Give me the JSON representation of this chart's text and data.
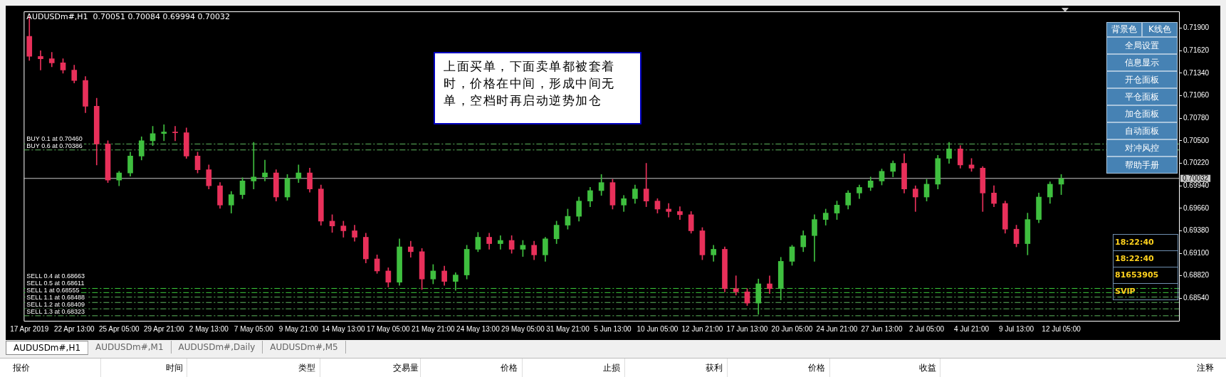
{
  "chart_data": {
    "type": "candlestick",
    "title": "AUDUSDm#,H1  0.70051 0.70084 0.69994 0.70032",
    "categories": [
      "17 Apr 2019",
      null,
      null,
      null,
      "22 Apr 13:00",
      null,
      null,
      null,
      "25 Apr 05:00",
      null,
      null,
      null,
      "29 Apr 21:00",
      null,
      null,
      null,
      "2 May 13:00",
      null,
      null,
      null,
      "7 May 05:00",
      null,
      null,
      null,
      "9 May 21:00",
      null,
      null,
      null,
      "14 May 13:00",
      null,
      null,
      null,
      "17 May 05:00",
      null,
      null,
      null,
      "21 May 21:00",
      null,
      null,
      null,
      "24 May 13:00",
      null,
      null,
      null,
      "29 May 05:00",
      null,
      null,
      null,
      "31 May 21:00",
      null,
      null,
      null,
      "5 Jun 13:00",
      null,
      null,
      null,
      "10 Jun 05:00",
      null,
      null,
      null,
      "12 Jun 21:00",
      null,
      null,
      null,
      "17 Jun 13:00",
      null,
      null,
      null,
      "20 Jun 05:00",
      null,
      null,
      null,
      "24 Jun 21:00",
      null,
      null,
      null,
      "27 Jun 13:00",
      null,
      null,
      null,
      "2 Jul 05:00",
      null,
      null,
      null,
      "4 Jul 21:00",
      null,
      null,
      null,
      "9 Jul 13:00",
      null,
      null,
      null,
      "12 Jul 05:00",
      null,
      null,
      null,
      null,
      null,
      null,
      null,
      null,
      null,
      null
    ],
    "ohlc": [
      [
        0.718,
        0.7205,
        0.715,
        0.7155
      ],
      [
        0.7155,
        0.7162,
        0.7138,
        0.7152
      ],
      [
        0.7152,
        0.716,
        0.7142,
        0.7147
      ],
      [
        0.7147,
        0.7152,
        0.7134,
        0.7138
      ],
      [
        0.7138,
        0.7144,
        0.7122,
        0.7125
      ],
      [
        0.7125,
        0.713,
        0.7085,
        0.7093
      ],
      [
        0.7093,
        0.7103,
        0.702,
        0.7046
      ],
      [
        0.7046,
        0.705,
        0.6998,
        0.7001
      ],
      [
        0.7001,
        0.7012,
        0.6994,
        0.701
      ],
      [
        0.701,
        0.7036,
        0.7006,
        0.7031
      ],
      [
        0.7031,
        0.7055,
        0.7026,
        0.705
      ],
      [
        0.705,
        0.7068,
        0.7044,
        0.7059
      ],
      [
        0.7059,
        0.707,
        0.705,
        0.7061
      ],
      [
        0.7061,
        0.7068,
        0.705,
        0.706
      ],
      [
        0.706,
        0.7066,
        0.7028,
        0.7031
      ],
      [
        0.7031,
        0.7036,
        0.701,
        0.7014
      ],
      [
        0.7014,
        0.702,
        0.699,
        0.6994
      ],
      [
        0.6994,
        0.6998,
        0.6966,
        0.697
      ],
      [
        0.697,
        0.6987,
        0.696,
        0.6983
      ],
      [
        0.6983,
        0.7004,
        0.6978,
        0.7
      ],
      [
        0.7,
        0.7048,
        0.699,
        0.7005
      ],
      [
        0.7005,
        0.7026,
        0.7,
        0.701
      ],
      [
        0.701,
        0.7014,
        0.6975,
        0.698
      ],
      [
        0.698,
        0.7008,
        0.6976,
        0.7003
      ],
      [
        0.7003,
        0.702,
        0.6998,
        0.701
      ],
      [
        0.701,
        0.7016,
        0.6986,
        0.699
      ],
      [
        0.699,
        0.6995,
        0.6945,
        0.695
      ],
      [
        0.695,
        0.6958,
        0.6936,
        0.6944
      ],
      [
        0.6944,
        0.695,
        0.693,
        0.6938
      ],
      [
        0.6938,
        0.6945,
        0.6925,
        0.693
      ],
      [
        0.693,
        0.6935,
        0.6898,
        0.6903
      ],
      [
        0.6903,
        0.6908,
        0.6885,
        0.6888
      ],
      [
        0.6888,
        0.6892,
        0.6868,
        0.6874
      ],
      [
        0.6874,
        0.6928,
        0.687,
        0.6918
      ],
      [
        0.6918,
        0.6925,
        0.6905,
        0.6912
      ],
      [
        0.6912,
        0.6916,
        0.6865,
        0.6878
      ],
      [
        0.6878,
        0.6896,
        0.6872,
        0.6888
      ],
      [
        0.6888,
        0.6894,
        0.687,
        0.6875
      ],
      [
        0.6875,
        0.6886,
        0.6864,
        0.6883
      ],
      [
        0.6883,
        0.692,
        0.6878,
        0.6915
      ],
      [
        0.6915,
        0.6936,
        0.6912,
        0.693
      ],
      [
        0.693,
        0.6935,
        0.6915,
        0.6922
      ],
      [
        0.6922,
        0.6932,
        0.6915,
        0.6926
      ],
      [
        0.6926,
        0.6932,
        0.691,
        0.6915
      ],
      [
        0.6915,
        0.6926,
        0.6906,
        0.692
      ],
      [
        0.692,
        0.6925,
        0.6902,
        0.6908
      ],
      [
        0.6908,
        0.693,
        0.69,
        0.6928
      ],
      [
        0.6928,
        0.695,
        0.6922,
        0.6945
      ],
      [
        0.6945,
        0.6965,
        0.694,
        0.6956
      ],
      [
        0.6956,
        0.698,
        0.695,
        0.6975
      ],
      [
        0.6975,
        0.6992,
        0.6968,
        0.6988
      ],
      [
        0.6988,
        0.7008,
        0.6982,
        0.6998
      ],
      [
        0.6998,
        0.7002,
        0.6965,
        0.697
      ],
      [
        0.697,
        0.6982,
        0.6962,
        0.6978
      ],
      [
        0.6978,
        0.6995,
        0.6972,
        0.699
      ],
      [
        0.699,
        0.7022,
        0.6968,
        0.6975
      ],
      [
        0.6975,
        0.6978,
        0.696,
        0.6965
      ],
      [
        0.6965,
        0.6972,
        0.6955,
        0.6962
      ],
      [
        0.6962,
        0.6968,
        0.6952,
        0.6958
      ],
      [
        0.6958,
        0.6962,
        0.6935,
        0.6938
      ],
      [
        0.6938,
        0.6942,
        0.6902,
        0.6908
      ],
      [
        0.6908,
        0.692,
        0.69,
        0.6915
      ],
      [
        0.6915,
        0.6918,
        0.6862,
        0.6866
      ],
      [
        0.6866,
        0.6882,
        0.6858,
        0.6862
      ],
      [
        0.6862,
        0.6866,
        0.6845,
        0.6848
      ],
      [
        0.6848,
        0.6878,
        0.6834,
        0.6872
      ],
      [
        0.6872,
        0.6882,
        0.686,
        0.6866
      ],
      [
        0.6866,
        0.6905,
        0.6852,
        0.69
      ],
      [
        0.69,
        0.692,
        0.6895,
        0.6918
      ],
      [
        0.6918,
        0.6938,
        0.6912,
        0.6932
      ],
      [
        0.6932,
        0.6958,
        0.69,
        0.6952
      ],
      [
        0.6952,
        0.6965,
        0.6945,
        0.696
      ],
      [
        0.696,
        0.6975,
        0.6952,
        0.697
      ],
      [
        0.697,
        0.6988,
        0.6965,
        0.6985
      ],
      [
        0.6985,
        0.6995,
        0.6978,
        0.6992
      ],
      [
        0.6992,
        0.7005,
        0.6988,
        0.7
      ],
      [
        0.7,
        0.7015,
        0.6995,
        0.7012
      ],
      [
        0.7012,
        0.7025,
        0.7005,
        0.7022
      ],
      [
        0.7022,
        0.7034,
        0.6985,
        0.699
      ],
      [
        0.699,
        0.6994,
        0.6962,
        0.698
      ],
      [
        0.698,
        0.7002,
        0.6975,
        0.6996
      ],
      [
        0.6996,
        0.7032,
        0.699,
        0.7028
      ],
      [
        0.7028,
        0.7048,
        0.7022,
        0.704
      ],
      [
        0.704,
        0.7044,
        0.7016,
        0.702
      ],
      [
        0.702,
        0.7028,
        0.7012,
        0.7016
      ],
      [
        0.7016,
        0.7018,
        0.6962,
        0.6985
      ],
      [
        0.6985,
        0.6994,
        0.6968,
        0.6972
      ],
      [
        0.6972,
        0.6975,
        0.6935,
        0.694
      ],
      [
        0.694,
        0.6945,
        0.6918,
        0.6922
      ],
      [
        0.6922,
        0.696,
        0.6908,
        0.6952
      ],
      [
        0.6952,
        0.6985,
        0.6948,
        0.698
      ],
      [
        0.698,
        0.6999,
        0.6972,
        0.6996
      ],
      [
        0.6996,
        0.7008,
        0.6983,
        0.7003
      ],
      null,
      null,
      null,
      null,
      null,
      null,
      null,
      null,
      null,
      null
    ],
    "ylim": [
      0.6826,
      0.7211
    ],
    "yticks": [
      {
        "value": 0.719,
        "label": "0.71900"
      },
      {
        "value": 0.7162,
        "label": "0.71620"
      },
      {
        "value": 0.7134,
        "label": "0.71340"
      },
      {
        "value": 0.7106,
        "label": "0.71060"
      },
      {
        "value": 0.7078,
        "label": "0.70780"
      },
      {
        "value": 0.705,
        "label": "0.70500"
      },
      {
        "value": 0.7022,
        "label": "0.70220"
      },
      {
        "value": 0.6994,
        "label": "0.69940"
      },
      {
        "value": 0.6966,
        "label": "0.69660"
      },
      {
        "value": 0.6938,
        "label": "0.69380"
      },
      {
        "value": 0.691,
        "label": "0.69100"
      },
      {
        "value": 0.6882,
        "label": "0.68820"
      },
      {
        "value": 0.6854,
        "label": "0.68540"
      }
    ],
    "ref_lines": [
      {
        "axis": "y",
        "value": 0.7046,
        "label": "BUY 0.1 at 0.70460",
        "color": "#5fb85f",
        "line_style": "dashed"
      },
      {
        "axis": "y",
        "value": 0.70386,
        "label": "BUY 0.6 at 0.70386",
        "color": "#5fb85f",
        "line_style": "dashed"
      },
      {
        "axis": "y",
        "value": 0.70032,
        "label": "0.70032",
        "color": "#c8c8c8",
        "line_style": "solid"
      },
      {
        "axis": "y",
        "value": 0.68663,
        "label": "SELL 0.4 at 0.68663",
        "color": "#3ccc3c",
        "line_style": "dashed"
      },
      {
        "axis": "y",
        "value": 0.68611,
        "label": "SELL 0.5 at 0.68611",
        "color": "#3ccc3c",
        "line_style": "dashed"
      },
      {
        "axis": "y",
        "value": 0.68555,
        "label": "SELL 1 at 0.68555",
        "color": "#5fb85f",
        "line_style": "dashed"
      },
      {
        "axis": "y",
        "value": 0.68488,
        "label": "SELL 1.1 at 0.68488",
        "color": "#5fb85f",
        "line_style": "dashed"
      },
      {
        "axis": "y",
        "value": 0.68409,
        "label": "SELL 1.2 at 0.68409",
        "color": "#5fb85f",
        "line_style": "dashed"
      },
      {
        "axis": "y",
        "value": 0.68323,
        "label": "SELL 1.3 at 0.68323",
        "color": "#5fb85f",
        "line_style": "dashed"
      }
    ],
    "annotations": [
      "上面买单，下面卖单都被套着时，价格在中间，形成中间无单，空档时再启动逆势加仓",
      "背景色",
      "K线色",
      "全局设置",
      "信息显示",
      "开仓面板",
      "平仓面板",
      "加仓面板",
      "自动面板",
      "对冲风控",
      "帮助手册",
      "18:22:40",
      "18:22:40",
      "81653905",
      "SVIP",
      "AUDUSDm#,H1",
      "AUDUSDm#,M1",
      "AUDUSDm#,Daily",
      "AUDUSDm#,M5",
      "报价",
      "时间",
      "类型",
      "交易量",
      "价格",
      "止损",
      "获利",
      "价格",
      "收益",
      "注释"
    ]
  }
}
